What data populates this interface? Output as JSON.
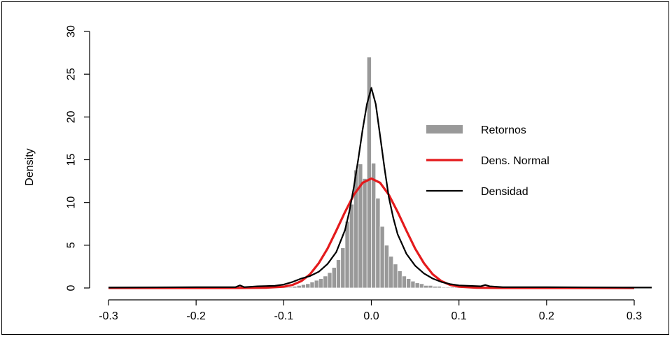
{
  "chart_data": {
    "type": "histogram",
    "title": "",
    "xlabel": "",
    "ylabel": "Density",
    "xlim": [
      -0.3,
      0.3
    ],
    "ylim": [
      0,
      30
    ],
    "x_ticks": [
      -0.3,
      -0.2,
      -0.1,
      0.0,
      0.1,
      0.2,
      0.3
    ],
    "x_tick_labels": [
      "-0.3",
      "-0.2",
      "-0.1",
      "0.0",
      "0.1",
      "0.2",
      "0.3"
    ],
    "y_ticks": [
      0,
      5,
      10,
      15,
      20,
      25,
      30
    ],
    "y_tick_labels": [
      "0",
      "5",
      "10",
      "15",
      "20",
      "25",
      "30"
    ],
    "grid": false,
    "legend_position": "right",
    "histogram": {
      "name": "Retornos",
      "color": "#999999",
      "bin_width": 0.005,
      "bin_starts": [
        -0.1,
        -0.095,
        -0.09,
        -0.085,
        -0.08,
        -0.075,
        -0.07,
        -0.065,
        -0.06,
        -0.055,
        -0.05,
        -0.045,
        -0.04,
        -0.035,
        -0.03,
        -0.025,
        -0.02,
        -0.015,
        -0.01,
        -0.005,
        0.0,
        0.005,
        0.01,
        0.015,
        0.02,
        0.025,
        0.03,
        0.035,
        0.04,
        0.045,
        0.05,
        0.055,
        0.06,
        0.065,
        0.07,
        0.075,
        0.08,
        0.085,
        0.09,
        0.095
      ],
      "values": [
        0.1,
        0.1,
        0.2,
        0.3,
        0.4,
        0.5,
        0.7,
        0.9,
        1.1,
        1.4,
        1.8,
        2.4,
        3.3,
        4.7,
        7.8,
        9.8,
        13.8,
        14.5,
        12.8,
        27.0,
        14.6,
        10.5,
        7.2,
        5.0,
        3.7,
        2.8,
        2.0,
        1.4,
        1.1,
        0.8,
        0.6,
        0.5,
        0.3,
        0.3,
        0.2,
        0.2,
        0.1,
        0.1,
        0.1,
        0.1
      ]
    },
    "lines": [
      {
        "name": "Dens. Normal",
        "color": "#e41a1c",
        "x": [
          -0.3,
          -0.15,
          -0.12,
          -0.1,
          -0.09,
          -0.08,
          -0.07,
          -0.06,
          -0.05,
          -0.04,
          -0.03,
          -0.02,
          -0.01,
          0.0,
          0.01,
          0.02,
          0.03,
          0.04,
          0.05,
          0.06,
          0.07,
          0.08,
          0.09,
          0.1,
          0.12,
          0.15,
          0.3
        ],
        "y": [
          0,
          0,
          0.03,
          0.15,
          0.35,
          0.8,
          1.6,
          2.9,
          4.6,
          6.7,
          8.9,
          10.9,
          12.3,
          12.8,
          12.3,
          10.9,
          8.9,
          6.7,
          4.6,
          2.9,
          1.6,
          0.8,
          0.35,
          0.15,
          0.03,
          0,
          0
        ]
      },
      {
        "name": "Densidad",
        "color": "#000000",
        "x": [
          -0.3,
          -0.2,
          -0.155,
          -0.15,
          -0.145,
          -0.13,
          -0.11,
          -0.1,
          -0.09,
          -0.08,
          -0.07,
          -0.06,
          -0.05,
          -0.04,
          -0.03,
          -0.025,
          -0.02,
          -0.015,
          -0.01,
          -0.005,
          0.0,
          0.005,
          0.01,
          0.015,
          0.02,
          0.025,
          0.03,
          0.04,
          0.05,
          0.06,
          0.07,
          0.08,
          0.09,
          0.1,
          0.11,
          0.125,
          0.13,
          0.135,
          0.15,
          0.2,
          0.3,
          0.32
        ],
        "y": [
          0.05,
          0.1,
          0.1,
          0.3,
          0.1,
          0.2,
          0.25,
          0.4,
          0.7,
          1.1,
          1.4,
          1.9,
          2.8,
          4.2,
          6.8,
          9.0,
          11.8,
          15.0,
          18.5,
          21.5,
          23.4,
          21.5,
          17.8,
          14.0,
          10.6,
          8.2,
          6.3,
          4.0,
          2.6,
          1.7,
          1.1,
          0.7,
          0.45,
          0.3,
          0.25,
          0.2,
          0.35,
          0.2,
          0.1,
          0.1,
          0.05,
          0.05
        ]
      }
    ],
    "legend": [
      {
        "name": "Retornos",
        "style": "bar",
        "color": "#999999"
      },
      {
        "name": "Dens. Normal",
        "style": "line",
        "color": "#e41a1c"
      },
      {
        "name": "Densidad",
        "style": "line",
        "color": "#000000"
      }
    ]
  }
}
